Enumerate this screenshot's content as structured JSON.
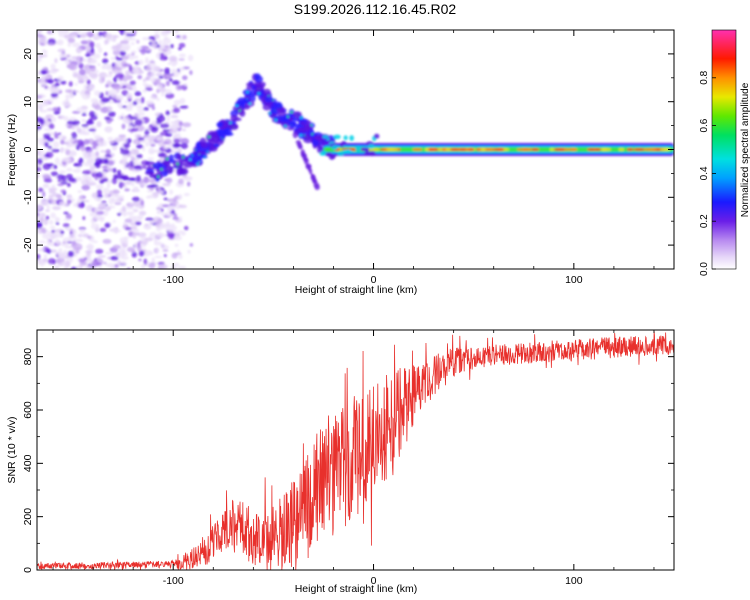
{
  "title": "S199.2026.112.16.45.R02",
  "colors": {
    "trace": "#e8302c",
    "axis": "#000000"
  },
  "chart_data": [
    {
      "type": "heatmap",
      "title": "",
      "xlabel": "Height of straight line (km)",
      "ylabel": "Frequency (Hz)",
      "xlim": [
        -168,
        150
      ],
      "ylim": [
        -25,
        25
      ],
      "x_ticks": [
        -100,
        0,
        100
      ],
      "x_tick_labels": [
        "-100",
        "0",
        "100"
      ],
      "y_ticks": [
        -20,
        -10,
        0,
        10,
        20
      ],
      "y_tick_labels": [
        "-20",
        "-10",
        "0",
        "10",
        "20"
      ],
      "grid": false,
      "colorbar": {
        "label": "Normalized spectral amplitude",
        "range": [
          0,
          1
        ],
        "ticks": [
          0.0,
          0.2,
          0.4,
          0.6,
          0.8
        ],
        "tick_labels": [
          "0.0",
          "0.2",
          "0.4",
          "0.6",
          "0.8"
        ],
        "colormap": "rainbow (white-violet-blue-cyan-green-yellow-red-magenta)"
      },
      "features": {
        "noise_region_km": [
          -168,
          -90
        ],
        "rising_track": [
          {
            "x": -112,
            "y": -5
          },
          {
            "x": -90,
            "y": -2
          },
          {
            "x": -80,
            "y": 2
          },
          {
            "x": -70,
            "y": 6
          },
          {
            "x": -58,
            "y": 14
          },
          {
            "x": -50,
            "y": 8
          },
          {
            "x": -40,
            "y": 6
          },
          {
            "x": -30,
            "y": 3
          },
          {
            "x": -20,
            "y": 0
          }
        ],
        "carrier_band": {
          "x_start": -25,
          "x_end": 150,
          "frequency": 0
        }
      }
    },
    {
      "type": "line",
      "title": "",
      "xlabel": "Height of straight line (km)",
      "ylabel": "SNR (10 * v/v)",
      "xlim": [
        -168,
        150
      ],
      "ylim": [
        0,
        900
      ],
      "x_ticks": [
        -100,
        0,
        100
      ],
      "x_tick_labels": [
        "-100",
        "0",
        "100"
      ],
      "y_ticks": [
        0,
        200,
        400,
        600,
        800
      ],
      "y_tick_labels": [
        "0",
        "200",
        "400",
        "600",
        "800"
      ],
      "grid": false,
      "series": [
        {
          "name": "SNR",
          "envelope": [
            {
              "x": -168,
              "y": 15
            },
            {
              "x": -120,
              "y": 18
            },
            {
              "x": -100,
              "y": 22
            },
            {
              "x": -90,
              "y": 40
            },
            {
              "x": -80,
              "y": 100
            },
            {
              "x": -70,
              "y": 180
            },
            {
              "x": -60,
              "y": 120
            },
            {
              "x": -50,
              "y": 120
            },
            {
              "x": -40,
              "y": 180
            },
            {
              "x": -30,
              "y": 300
            },
            {
              "x": -20,
              "y": 350
            },
            {
              "x": -10,
              "y": 420
            },
            {
              "x": 0,
              "y": 480
            },
            {
              "x": 10,
              "y": 560
            },
            {
              "x": 20,
              "y": 650
            },
            {
              "x": 30,
              "y": 730
            },
            {
              "x": 40,
              "y": 780
            },
            {
              "x": 60,
              "y": 805
            },
            {
              "x": 80,
              "y": 815
            },
            {
              "x": 100,
              "y": 825
            },
            {
              "x": 120,
              "y": 835
            },
            {
              "x": 140,
              "y": 840
            },
            {
              "x": 150,
              "y": 845
            }
          ],
          "noise_amplitude": [
            {
              "x": -168,
              "y": 12
            },
            {
              "x": -100,
              "y": 14
            },
            {
              "x": -85,
              "y": 60
            },
            {
              "x": -60,
              "y": 110
            },
            {
              "x": -40,
              "y": 170
            },
            {
              "x": -20,
              "y": 230
            },
            {
              "x": -5,
              "y": 230
            },
            {
              "x": 10,
              "y": 190
            },
            {
              "x": 25,
              "y": 90
            },
            {
              "x": 50,
              "y": 40
            },
            {
              "x": 150,
              "y": 40
            }
          ]
        }
      ]
    }
  ]
}
